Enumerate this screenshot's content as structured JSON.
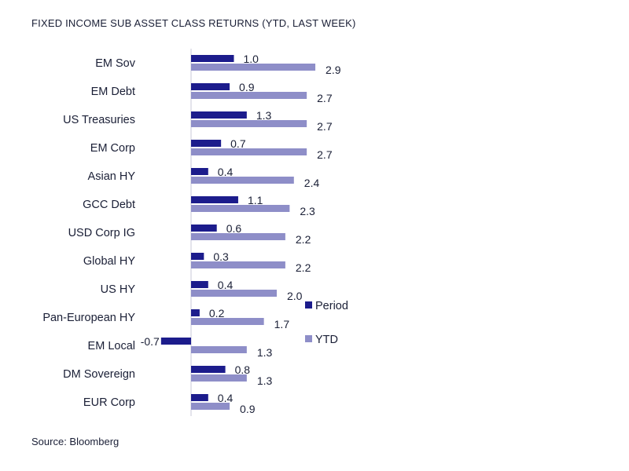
{
  "title": "FIXED INCOME SUB ASSET CLASS RETURNS (YTD, LAST WEEK)",
  "source": "Source: Bloomberg",
  "colors": {
    "period": "#1c1c8c",
    "ytd": "#8e8ec8",
    "axis": "#c8c8d8",
    "text": "#1a1f36"
  },
  "chart_data": {
    "type": "bar",
    "orientation": "horizontal",
    "title": "FIXED INCOME SUB ASSET CLASS RETURNS (YTD, LAST WEEK)",
    "categories": [
      "EM Sov",
      "EM Debt",
      "US Treasuries",
      "EM Corp",
      "Asian HY",
      "GCC Debt",
      "USD Corp IG",
      "Global HY",
      "US HY",
      "Pan-European HY",
      "EM Local",
      "DM Sovereign",
      "EUR Corp"
    ],
    "series": [
      {
        "name": "Period",
        "values": [
          1.0,
          0.9,
          1.3,
          0.7,
          0.4,
          1.1,
          0.6,
          0.3,
          0.4,
          0.2,
          -0.7,
          0.8,
          0.4
        ],
        "labels": [
          "1.0",
          "0.9",
          "1.3",
          "0.7",
          "0.4",
          "1.1",
          "0.6",
          "0.3",
          "0.4",
          "0.2",
          "-0.7",
          "0.8",
          "0.4"
        ]
      },
      {
        "name": "YTD",
        "values": [
          2.9,
          2.7,
          2.7,
          2.7,
          2.4,
          2.3,
          2.2,
          2.2,
          2.0,
          1.7,
          1.3,
          1.3,
          0.9
        ],
        "labels": [
          "2.9",
          "2.7",
          "2.7",
          "2.7",
          "2.4",
          "2.3",
          "2.2",
          "2.2",
          "2.0",
          "1.7",
          "1.3",
          "1.3",
          "0.9"
        ]
      }
    ],
    "legend_position": "right",
    "grid": false
  }
}
